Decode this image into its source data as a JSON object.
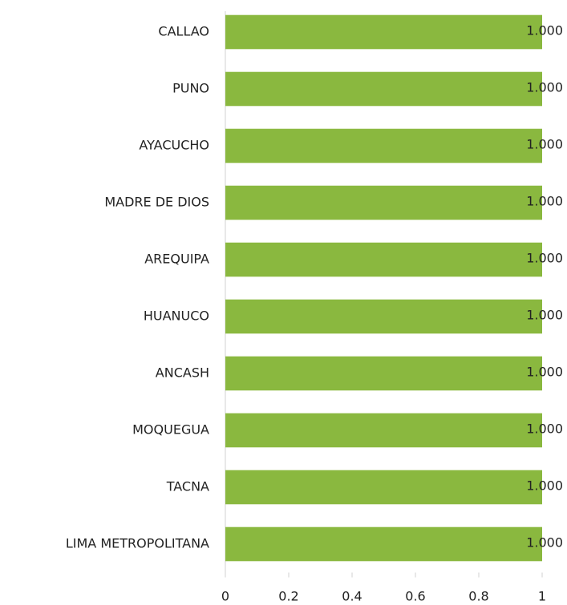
{
  "chart_data": {
    "type": "bar",
    "orientation": "horizontal",
    "categories": [
      "CALLAO",
      "PUNO",
      "AYACUCHO",
      "MADRE DE DIOS",
      "AREQUIPA",
      "HUANUCO",
      "ANCASH",
      "MOQUEGUA",
      "TACNA",
      "LIMA METROPOLITANA"
    ],
    "values": [
      1,
      1,
      1,
      1,
      1,
      1,
      1,
      1,
      1,
      1
    ],
    "value_labels": [
      "1.000",
      "1.000",
      "1.000",
      "1.000",
      "1.000",
      "1.000",
      "1.000",
      "1.000",
      "1.000",
      "1.000"
    ],
    "color": "#8ab83f",
    "xlim": [
      0,
      1
    ],
    "xticks": [
      0,
      0.2,
      0.4,
      0.6,
      0.8,
      1
    ],
    "grid": false
  }
}
